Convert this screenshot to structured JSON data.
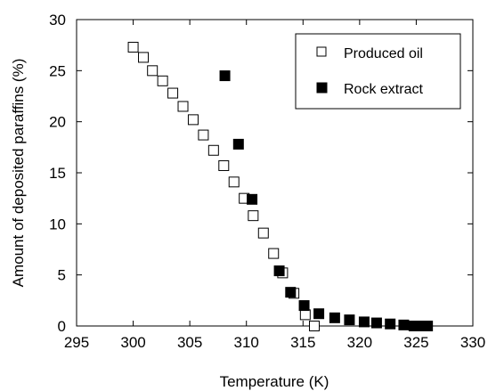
{
  "chart_data": {
    "type": "scatter",
    "title": "",
    "xlabel": "Temperature (K)",
    "ylabel": "Amount of deposited paraffins (%)",
    "xlim": [
      295,
      330
    ],
    "ylim": [
      0,
      30
    ],
    "xticks": [
      295,
      300,
      305,
      310,
      315,
      320,
      325,
      330
    ],
    "yticks": [
      0,
      5,
      10,
      15,
      20,
      25,
      30
    ],
    "grid": false,
    "legend_position": "top-right",
    "series": [
      {
        "name": "Produced oil",
        "marker": "open-square",
        "color": "#000000",
        "points": [
          [
            300.0,
            27.3
          ],
          [
            300.9,
            26.3
          ],
          [
            301.7,
            25.0
          ],
          [
            302.6,
            24.0
          ],
          [
            303.5,
            22.8
          ],
          [
            304.4,
            21.5
          ],
          [
            305.3,
            20.2
          ],
          [
            306.2,
            18.7
          ],
          [
            307.1,
            17.2
          ],
          [
            308.0,
            15.7
          ],
          [
            308.9,
            14.1
          ],
          [
            309.8,
            12.5
          ],
          [
            310.6,
            10.8
          ],
          [
            311.5,
            9.1
          ],
          [
            312.4,
            7.1
          ],
          [
            313.2,
            5.2
          ],
          [
            314.2,
            3.2
          ],
          [
            315.2,
            1.1
          ],
          [
            316.0,
            0.0
          ]
        ]
      },
      {
        "name": "Rock extract",
        "marker": "filled-square",
        "color": "#000000",
        "points": [
          [
            308.1,
            24.5
          ],
          [
            309.3,
            17.8
          ],
          [
            310.5,
            12.4
          ],
          [
            312.9,
            5.4
          ],
          [
            313.9,
            3.3
          ],
          [
            315.1,
            2.0
          ],
          [
            316.4,
            1.2
          ],
          [
            317.8,
            0.8
          ],
          [
            319.1,
            0.6
          ],
          [
            320.4,
            0.4
          ],
          [
            321.5,
            0.3
          ],
          [
            322.7,
            0.2
          ],
          [
            323.9,
            0.1
          ],
          [
            324.8,
            0.0
          ],
          [
            325.2,
            0.0
          ],
          [
            325.6,
            0.0
          ],
          [
            326.0,
            0.0
          ]
        ]
      }
    ]
  }
}
